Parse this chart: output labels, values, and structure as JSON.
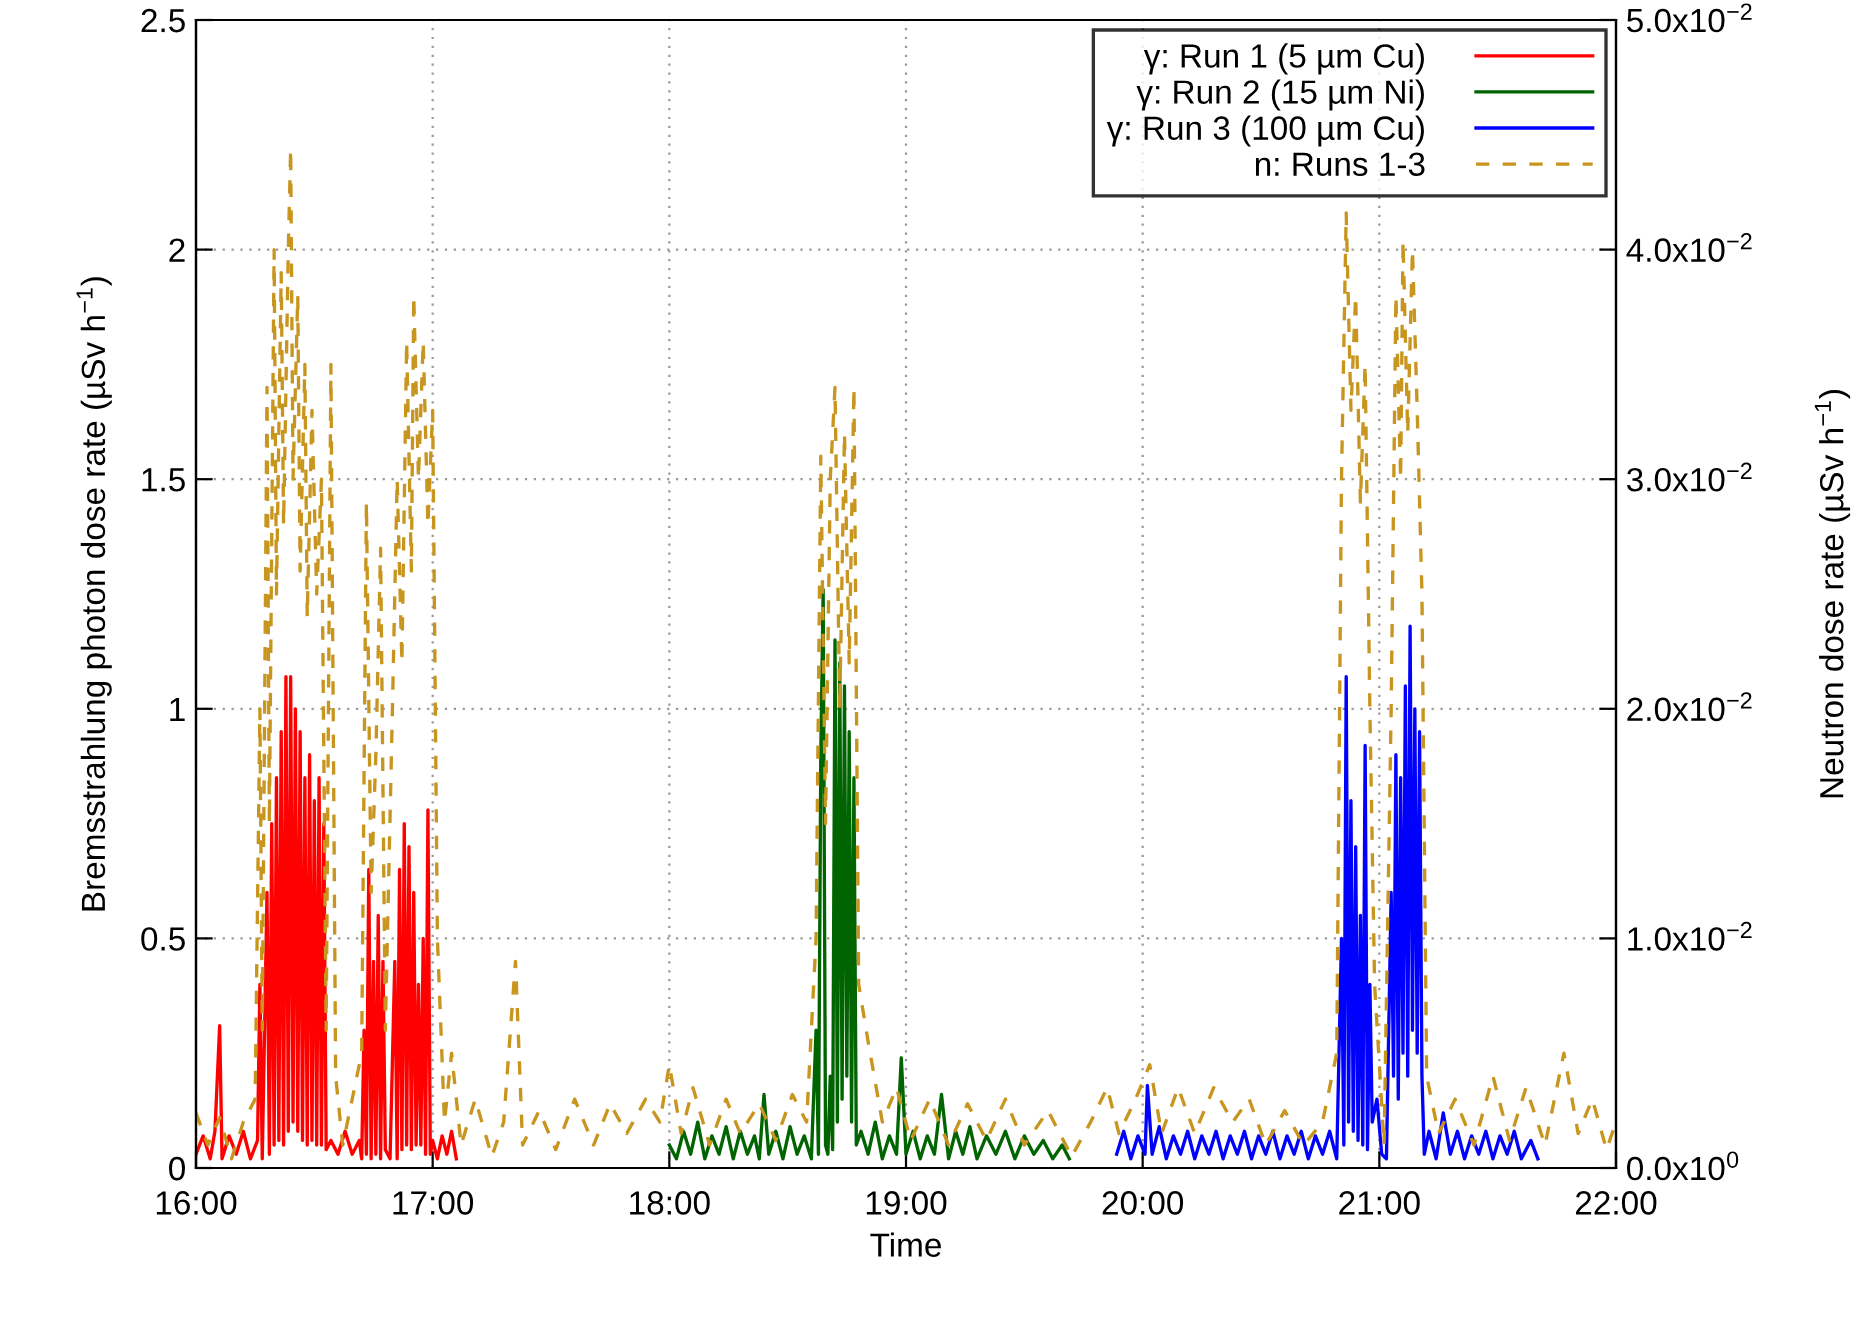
{
  "chart_data": {
    "type": "line",
    "xlabel": "Time",
    "ylabel": "Bremsstrahlung photon dose rate (µSv h$^{−1}$)",
    "y2label": "Neutron dose rate (µSv h$^{−1}$)",
    "xlim": [
      16,
      22
    ],
    "xticks": [
      {
        "value": 16,
        "label": "16:00"
      },
      {
        "value": 17,
        "label": "17:00"
      },
      {
        "value": 18,
        "label": "18:00"
      },
      {
        "value": 19,
        "label": "19:00"
      },
      {
        "value": 20,
        "label": "20:00"
      },
      {
        "value": 21,
        "label": "21:00"
      },
      {
        "value": 22,
        "label": "22:00"
      }
    ],
    "ylim": [
      0,
      2.5
    ],
    "yticks": [
      0,
      0.5,
      1,
      1.5,
      2,
      2.5
    ],
    "y2lim": [
      0,
      0.05
    ],
    "y2ticks": [
      {
        "value": 0,
        "label": "0.0x10$^{0}$"
      },
      {
        "value": 0.01,
        "label": "1.0x10$^{−2}$"
      },
      {
        "value": 0.02,
        "label": "2.0x10$^{−2}$"
      },
      {
        "value": 0.03,
        "label": "3.0x10$^{−2}$"
      },
      {
        "value": 0.04,
        "label": "4.0x10$^{−2}$"
      },
      {
        "value": 0.05,
        "label": "5.0x10$^{−2}$"
      }
    ],
    "grid": true,
    "legend": "top right",
    "marker": "none",
    "series": [
      {
        "name": "γ: Run 1 (5 µm Cu)",
        "color": "#ff0000",
        "line_style": "solid",
        "x": [
          16.0,
          16.03,
          16.06,
          16.08,
          16.1,
          16.11,
          16.14,
          16.17,
          16.2,
          16.23,
          16.26,
          16.27,
          16.28,
          16.3,
          16.31,
          16.32,
          16.33,
          16.34,
          16.35,
          16.36,
          16.37,
          16.38,
          16.39,
          16.4,
          16.41,
          16.42,
          16.43,
          16.44,
          16.45,
          16.46,
          16.47,
          16.48,
          16.49,
          16.5,
          16.51,
          16.52,
          16.53,
          16.54,
          16.55,
          16.57,
          16.6,
          16.63,
          16.66,
          16.69,
          16.7,
          16.71,
          16.72,
          16.73,
          16.74,
          16.75,
          16.76,
          16.77,
          16.78,
          16.79,
          16.8,
          16.82,
          16.84,
          16.85,
          16.86,
          16.87,
          16.88,
          16.89,
          16.9,
          16.91,
          16.92,
          16.93,
          16.94,
          16.95,
          16.96,
          16.97,
          16.98,
          16.99,
          17.0,
          17.02,
          17.04,
          17.06,
          17.08,
          17.1
        ],
        "values": [
          0.03,
          0.07,
          0.02,
          0.08,
          0.31,
          0.02,
          0.07,
          0.03,
          0.08,
          0.02,
          0.06,
          0.4,
          0.02,
          0.6,
          0.03,
          0.75,
          0.05,
          0.85,
          0.06,
          0.95,
          0.05,
          1.07,
          0.08,
          1.07,
          0.1,
          1.0,
          0.08,
          0.95,
          0.06,
          0.85,
          0.05,
          0.9,
          0.06,
          0.8,
          0.05,
          0.85,
          0.05,
          0.75,
          0.04,
          0.06,
          0.03,
          0.08,
          0.03,
          0.06,
          0.02,
          0.3,
          0.03,
          0.65,
          0.02,
          0.45,
          0.03,
          0.55,
          0.02,
          0.45,
          0.04,
          0.02,
          0.45,
          0.02,
          0.65,
          0.04,
          0.75,
          0.05,
          0.7,
          0.04,
          0.6,
          0.05,
          0.4,
          0.05,
          0.5,
          0.03,
          0.78,
          0.03,
          0.06,
          0.02,
          0.07,
          0.03,
          0.08,
          0.02
        ]
      },
      {
        "name": "γ: Run 2 (15 µm Ni)",
        "color": "#006400",
        "line_style": "solid",
        "x": [
          18.0,
          18.03,
          18.06,
          18.09,
          18.12,
          18.15,
          18.18,
          18.21,
          18.24,
          18.27,
          18.3,
          18.33,
          18.36,
          18.38,
          18.4,
          18.42,
          18.45,
          18.48,
          18.51,
          18.54,
          18.57,
          18.6,
          18.62,
          18.63,
          18.64,
          18.65,
          18.66,
          18.67,
          18.68,
          18.69,
          18.7,
          18.71,
          18.72,
          18.73,
          18.74,
          18.75,
          18.76,
          18.77,
          18.78,
          18.79,
          18.81,
          18.84,
          18.87,
          18.9,
          18.93,
          18.96,
          18.98,
          19.0,
          19.03,
          19.06,
          19.09,
          19.12,
          19.15,
          19.18,
          19.21,
          19.24,
          19.27,
          19.3,
          19.34,
          19.38,
          19.42,
          19.46,
          19.5,
          19.54,
          19.58,
          19.62,
          19.66,
          19.69
        ],
        "values": [
          0.05,
          0.02,
          0.08,
          0.03,
          0.1,
          0.02,
          0.07,
          0.03,
          0.09,
          0.02,
          0.08,
          0.03,
          0.07,
          0.02,
          0.16,
          0.03,
          0.08,
          0.02,
          0.09,
          0.03,
          0.07,
          0.02,
          0.3,
          0.03,
          0.9,
          1.26,
          0.05,
          0.03,
          0.2,
          0.04,
          1.15,
          0.1,
          1.1,
          0.15,
          1.05,
          0.2,
          0.95,
          0.1,
          0.85,
          0.05,
          0.08,
          0.03,
          0.1,
          0.02,
          0.07,
          0.03,
          0.24,
          0.03,
          0.08,
          0.02,
          0.07,
          0.03,
          0.16,
          0.02,
          0.08,
          0.03,
          0.09,
          0.02,
          0.07,
          0.03,
          0.08,
          0.02,
          0.07,
          0.03,
          0.06,
          0.02,
          0.05,
          0.02
        ]
      },
      {
        "name": "γ: Run 3 (100 µm Cu)",
        "color": "#0000ff",
        "line_style": "solid",
        "x": [
          19.89,
          19.92,
          19.95,
          19.98,
          20.01,
          20.02,
          20.04,
          20.07,
          20.1,
          20.13,
          20.16,
          20.19,
          20.22,
          20.25,
          20.28,
          20.31,
          20.34,
          20.37,
          20.4,
          20.43,
          20.46,
          20.49,
          20.52,
          20.55,
          20.58,
          20.61,
          20.64,
          20.67,
          20.7,
          20.73,
          20.76,
          20.79,
          20.82,
          20.84,
          20.85,
          20.86,
          20.87,
          20.88,
          20.89,
          20.9,
          20.91,
          20.92,
          20.93,
          20.94,
          20.95,
          20.96,
          20.97,
          20.99,
          21.01,
          21.03,
          21.05,
          21.06,
          21.07,
          21.08,
          21.09,
          21.1,
          21.11,
          21.12,
          21.13,
          21.14,
          21.15,
          21.16,
          21.17,
          21.18,
          21.19,
          21.21,
          21.24,
          21.27,
          21.3,
          21.33,
          21.36,
          21.39,
          21.42,
          21.45,
          21.48,
          21.51,
          21.54,
          21.57,
          21.6,
          21.64,
          21.67
        ],
        "values": [
          0.03,
          0.08,
          0.02,
          0.07,
          0.03,
          0.18,
          0.03,
          0.09,
          0.02,
          0.07,
          0.03,
          0.08,
          0.02,
          0.07,
          0.03,
          0.08,
          0.02,
          0.07,
          0.03,
          0.08,
          0.02,
          0.07,
          0.03,
          0.08,
          0.02,
          0.07,
          0.03,
          0.08,
          0.02,
          0.07,
          0.03,
          0.08,
          0.02,
          0.5,
          0.05,
          1.07,
          0.1,
          0.8,
          0.08,
          0.7,
          0.06,
          0.55,
          0.05,
          0.92,
          0.04,
          0.4,
          0.1,
          0.15,
          0.03,
          0.02,
          0.6,
          0.2,
          0.9,
          0.15,
          0.85,
          0.25,
          1.05,
          0.2,
          1.18,
          0.3,
          1.0,
          0.25,
          0.95,
          0.2,
          0.03,
          0.08,
          0.02,
          0.12,
          0.03,
          0.08,
          0.02,
          0.07,
          0.03,
          0.08,
          0.02,
          0.07,
          0.03,
          0.08,
          0.02,
          0.06,
          0.02
        ]
      },
      {
        "name": "n: Runs 1-3",
        "color": "#c8951f",
        "line_style": "dashed",
        "axis": "y2",
        "x": [
          16.0,
          16.05,
          16.1,
          16.15,
          16.2,
          16.25,
          16.27,
          16.28,
          16.3,
          16.31,
          16.33,
          16.34,
          16.36,
          16.37,
          16.39,
          16.4,
          16.41,
          16.43,
          16.44,
          16.46,
          16.47,
          16.49,
          16.51,
          16.53,
          16.55,
          16.57,
          16.59,
          16.62,
          16.66,
          16.7,
          16.72,
          16.74,
          16.76,
          16.78,
          16.8,
          16.83,
          16.85,
          16.87,
          16.89,
          16.91,
          16.92,
          16.94,
          16.96,
          16.98,
          17.0,
          17.02,
          17.05,
          17.08,
          17.12,
          17.18,
          17.25,
          17.3,
          17.35,
          17.38,
          17.45,
          17.52,
          17.6,
          17.68,
          17.75,
          17.82,
          17.9,
          17.96,
          18.0,
          18.05,
          18.1,
          18.17,
          18.24,
          18.3,
          18.38,
          18.45,
          18.52,
          18.58,
          18.62,
          18.64,
          18.66,
          18.68,
          18.7,
          18.72,
          18.74,
          18.76,
          18.78,
          18.8,
          18.84,
          18.9,
          18.96,
          19.02,
          19.1,
          19.18,
          19.26,
          19.34,
          19.42,
          19.5,
          19.6,
          19.7,
          19.78,
          19.85,
          19.9,
          19.97,
          20.03,
          20.08,
          20.15,
          20.22,
          20.3,
          20.38,
          20.45,
          20.52,
          20.6,
          20.68,
          20.76,
          20.82,
          20.84,
          20.86,
          20.88,
          20.9,
          20.92,
          20.94,
          20.96,
          20.98,
          21.02,
          21.05,
          21.07,
          21.09,
          21.1,
          21.12,
          21.14,
          21.16,
          21.18,
          21.2,
          21.25,
          21.32,
          21.4,
          21.48,
          21.55,
          21.62,
          21.7,
          21.78,
          21.84,
          21.9,
          21.96,
          22.0
        ],
        "values": [
          0.0024,
          0.001,
          0.0022,
          0.0004,
          0.002,
          0.003,
          0.02,
          0.006,
          0.034,
          0.015,
          0.04,
          0.025,
          0.039,
          0.028,
          0.04,
          0.0444,
          0.03,
          0.038,
          0.026,
          0.035,
          0.024,
          0.033,
          0.025,
          0.03,
          0.006,
          0.035,
          0.004,
          0.001,
          0.003,
          0.005,
          0.029,
          0.012,
          0.018,
          0.027,
          0.006,
          0.02,
          0.03,
          0.022,
          0.036,
          0.026,
          0.038,
          0.03,
          0.036,
          0.028,
          0.033,
          0.01,
          0.002,
          0.005,
          0.001,
          0.003,
          0.0005,
          0.002,
          0.009,
          0.001,
          0.0025,
          0.0008,
          0.003,
          0.001,
          0.0028,
          0.0015,
          0.003,
          0.002,
          0.0045,
          0.0015,
          0.0035,
          0.001,
          0.003,
          0.0015,
          0.0028,
          0.0012,
          0.0032,
          0.002,
          0.01,
          0.031,
          0.015,
          0.03,
          0.034,
          0.02,
          0.032,
          0.022,
          0.034,
          0.008,
          0.0055,
          0.002,
          0.0035,
          0.0012,
          0.003,
          0.001,
          0.0028,
          0.0012,
          0.003,
          0.001,
          0.0025,
          0.0005,
          0.002,
          0.0035,
          0.0015,
          0.003,
          0.0045,
          0.0015,
          0.0035,
          0.0015,
          0.0035,
          0.002,
          0.003,
          0.001,
          0.0025,
          0.001,
          0.002,
          0.005,
          0.03,
          0.0416,
          0.033,
          0.038,
          0.029,
          0.035,
          0.02,
          0.008,
          0.001,
          0.02,
          0.038,
          0.03,
          0.0404,
          0.032,
          0.04,
          0.033,
          0.025,
          0.004,
          0.0015,
          0.003,
          0.001,
          0.004,
          0.0012,
          0.0035,
          0.001,
          0.005,
          0.0015,
          0.003,
          0.0008,
          0.002
        ]
      }
    ]
  }
}
